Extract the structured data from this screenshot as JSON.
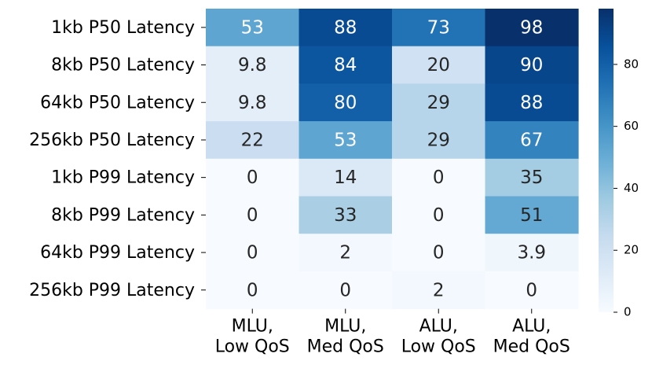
{
  "chart_data": {
    "type": "heatmap",
    "rows": [
      "1kb P50 Latency",
      "8kb P50 Latency",
      "64kb P50 Latency",
      "256kb P50 Latency",
      "1kb P99 Latency",
      "8kb P99 Latency",
      "64kb P99 Latency",
      "256kb P99 Latency"
    ],
    "columns": [
      [
        "MLU,",
        "Low QoS"
      ],
      [
        "MLU,",
        "Med QoS"
      ],
      [
        "ALU,",
        "Low QoS"
      ],
      [
        "ALU,",
        "Med QoS"
      ]
    ],
    "values": [
      [
        53,
        88,
        73,
        98
      ],
      [
        9.8,
        84,
        20,
        90
      ],
      [
        9.8,
        80,
        29,
        88
      ],
      [
        22,
        53,
        29,
        67
      ],
      [
        0,
        14,
        0,
        35
      ],
      [
        0,
        33,
        0,
        51
      ],
      [
        0,
        2,
        0,
        3.9
      ],
      [
        0,
        0,
        2,
        0
      ]
    ],
    "value_labels": [
      [
        "53",
        "88",
        "73",
        "98"
      ],
      [
        "9.8",
        "84",
        "20",
        "90"
      ],
      [
        "9.8",
        "80",
        "29",
        "88"
      ],
      [
        "22",
        "53",
        "29",
        "67"
      ],
      [
        "0",
        "14",
        "0",
        "35"
      ],
      [
        "0",
        "33",
        "0",
        "51"
      ],
      [
        "0",
        "2",
        "0",
        "3.9"
      ],
      [
        "0",
        "0",
        "2",
        "0"
      ]
    ],
    "colormap": "Blues",
    "vmin": 0,
    "vmax": 98,
    "colorbar_ticks": [
      0,
      20,
      40,
      60,
      80
    ],
    "colorbar_tick_labels": [
      "0",
      "20",
      "40",
      "60",
      "80"
    ],
    "colorbar_placement": "right"
  }
}
